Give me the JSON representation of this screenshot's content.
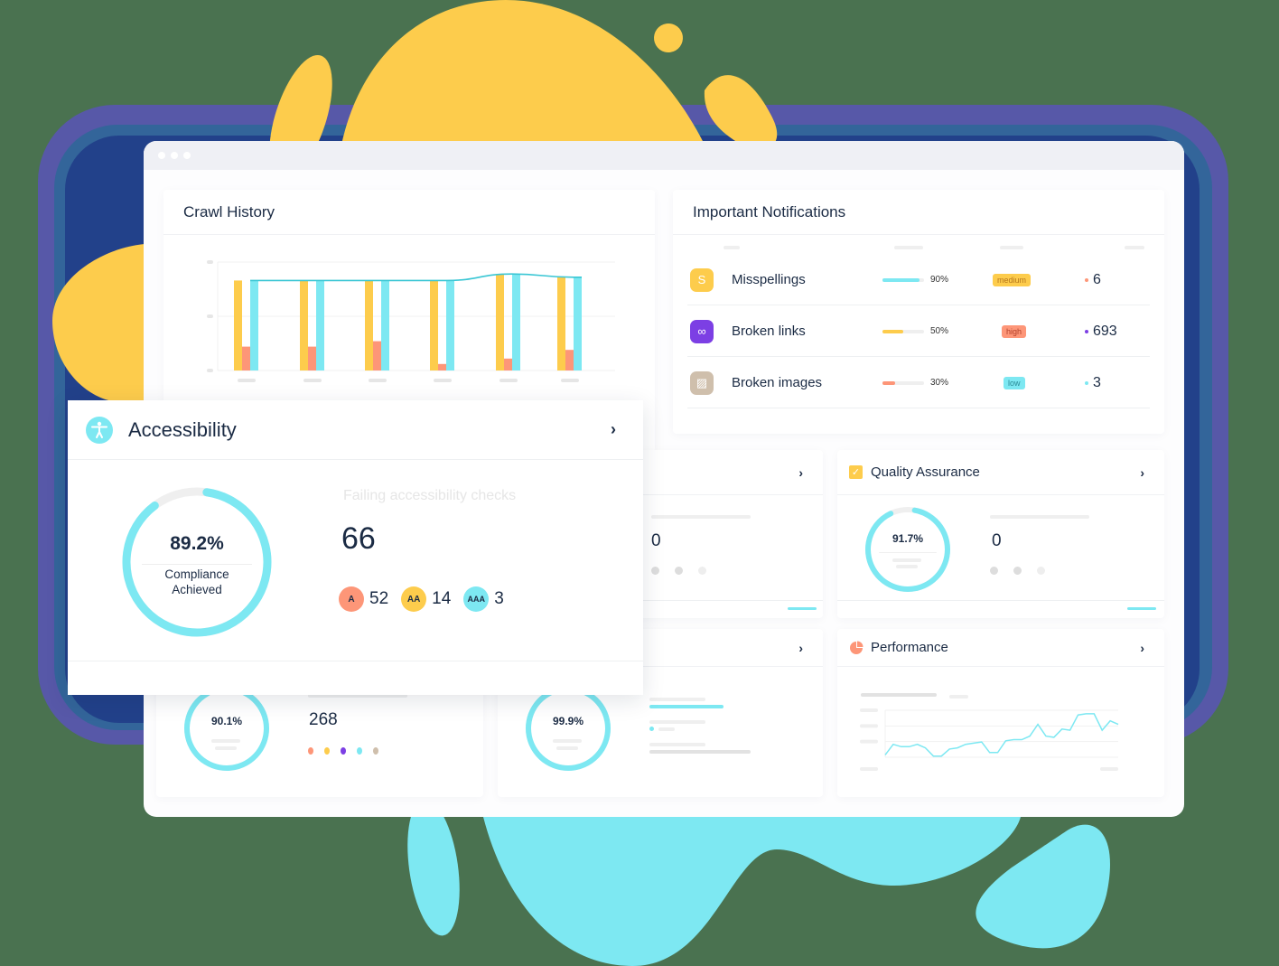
{
  "colors": {
    "background": "#4a7250",
    "yellow": "#fdcc4c",
    "cyan": "#7de8f2",
    "salmon": "#fd9678",
    "purple": "#7c3fe4",
    "taupe": "#cfbfac",
    "frame_outer": "#5758a8",
    "frame_mid": "#33659a",
    "frame_inner": "#22418a",
    "text_dark": "#1b2b44"
  },
  "window": {
    "titlebar_dots": 3
  },
  "crawl_history": {
    "title": "Crawl History"
  },
  "chart_data": {
    "type": "bar",
    "title": "Crawl History",
    "xlabel": "",
    "ylabel": "",
    "categories": [
      "",
      "",
      "",
      "",
      "",
      ""
    ],
    "series": [
      {
        "name": "yellow",
        "color": "#fdcc4c",
        "values": [
          83,
          83,
          83,
          83,
          89,
          86
        ]
      },
      {
        "name": "salmon",
        "color": "#fd9678",
        "values": [
          22,
          22,
          27,
          6,
          11,
          19
        ]
      },
      {
        "name": "cyan",
        "color": "#7de8f2",
        "values": [
          83,
          83,
          83,
          83,
          89,
          86
        ]
      },
      {
        "name": "trend-line",
        "type": "line",
        "color": "#39c6d4",
        "values": [
          83,
          83,
          83,
          83,
          89,
          86
        ]
      }
    ],
    "ylim": [
      0,
      100
    ],
    "grid": true,
    "legend": "none"
  },
  "notifications": {
    "title": "Important Notifications",
    "rows": [
      {
        "label": "Misspellings",
        "icon": "misspelling-icon",
        "icon_color": "#fdcc4c",
        "progress": 90,
        "progress_label": "90%",
        "bar_color": "#7de8f2",
        "severity": "medium",
        "severity_bg": "#fdcc4c",
        "severity_fg": "#b5761c",
        "count": "6",
        "dot_color": "#fd9678"
      },
      {
        "label": "Broken links",
        "icon": "broken-link-icon",
        "icon_color": "#7c3fe4",
        "progress": 50,
        "progress_label": "50%",
        "bar_color": "#fdcc4c",
        "severity": "high",
        "severity_bg": "#fd9678",
        "severity_fg": "#b2402a",
        "count": "693",
        "dot_color": "#7c3fe4"
      },
      {
        "label": "Broken images",
        "icon": "broken-image-icon",
        "icon_color": "#cfbfac",
        "progress": 30,
        "progress_label": "30%",
        "bar_color": "#fd9678",
        "severity": "low",
        "severity_bg": "#7de8f2",
        "severity_fg": "#2a8a96",
        "count": "3",
        "dot_color": "#7de8f2"
      }
    ]
  },
  "accessibility": {
    "title": "Accessibility",
    "compliance_pct": "89.2%",
    "compliance_value": 89.2,
    "compliance_label_1": "Compliance",
    "compliance_label_2": "Achieved",
    "failing_label": "Failing accessibility checks",
    "failing_count": "66",
    "levels": [
      {
        "badge": "A",
        "count": "52",
        "color": "#fd9678"
      },
      {
        "badge": "AA",
        "count": "14",
        "color": "#fdcc4c"
      },
      {
        "badge": "AAA",
        "count": "3",
        "color": "#7de8f2"
      }
    ]
  },
  "middle_card": {
    "value": "0"
  },
  "quality_assurance": {
    "title": "Quality Assurance",
    "pct": "91.7%",
    "pct_value": 91.7,
    "value": "0"
  },
  "bottom_left_card": {
    "pct": "90.1%",
    "pct_value": 90.1,
    "value": "268",
    "dots": [
      "#fd9678",
      "#fdcc4c",
      "#7c3fe4",
      "#7de8f2",
      "#cfbfac"
    ]
  },
  "bottom_middle_card": {
    "pct": "99.9%",
    "pct_value": 99.9
  },
  "performance": {
    "title": "Performance",
    "line": [
      2,
      11,
      9,
      9,
      11,
      8,
      1,
      1,
      7,
      8,
      11,
      12,
      13,
      4,
      4,
      14,
      15,
      15,
      18,
      28,
      18,
      17,
      24,
      23,
      36,
      37,
      37,
      23,
      31,
      28
    ]
  }
}
